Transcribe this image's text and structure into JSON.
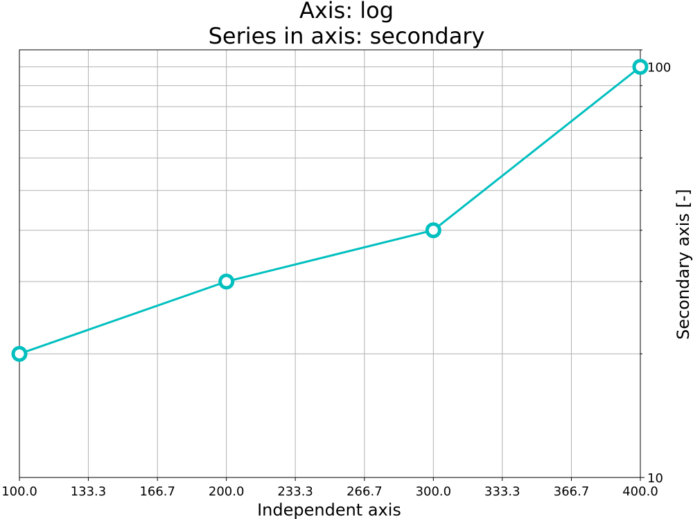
{
  "chart_data": {
    "type": "line",
    "title": "Axis: log\nSeries in axis: secondary",
    "title_lines": [
      "Axis: log",
      "Series in axis: secondary"
    ],
    "xlabel": "Independent axis",
    "ylabel": "Secondary axis [-]",
    "y_axis_side": "right",
    "y_scale": "log",
    "xlim": [
      100,
      400
    ],
    "ylim": [
      10,
      110
    ],
    "x_ticks": [
      100.0,
      133.3,
      166.7,
      200.0,
      233.3,
      266.7,
      300.0,
      333.3,
      366.7,
      400.0
    ],
    "x_tick_labels": [
      "100.0",
      "133.3",
      "166.7",
      "200.0",
      "233.3",
      "266.7",
      "300.0",
      "333.3",
      "366.7",
      "400.0"
    ],
    "y_ticks": [
      10,
      100
    ],
    "y_tick_labels": [
      "10",
      "100"
    ],
    "y_minor_ticks": [
      20,
      30,
      40,
      50,
      60,
      70,
      80,
      90,
      110
    ],
    "grid": true,
    "series": [
      {
        "x": [
          100,
          200,
          300,
          400
        ],
        "values": [
          20,
          30,
          40,
          100
        ],
        "color": "#00bfbf",
        "marker": "hollow-circle"
      }
    ]
  }
}
